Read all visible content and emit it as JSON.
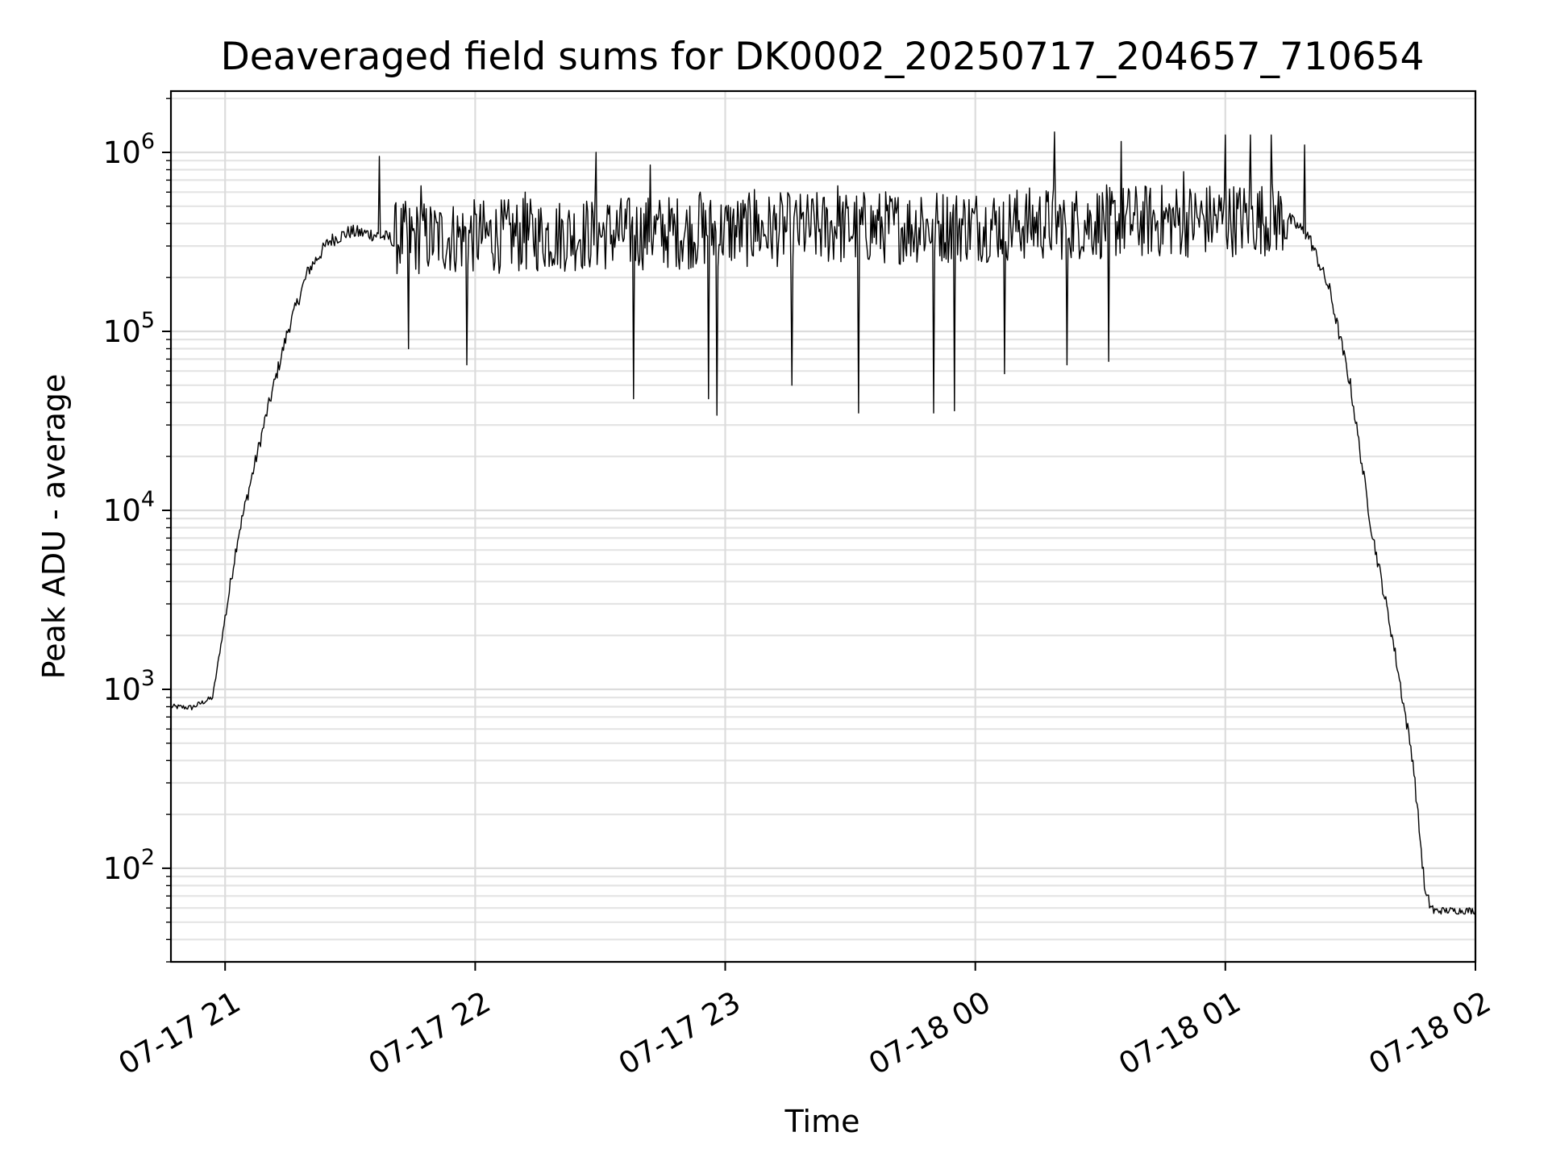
{
  "chart_data": {
    "type": "line",
    "title": "Deaveraged field sums for DK0002_20250717_204657_710654",
    "xlabel": "Time",
    "ylabel": "Peak ADU - average",
    "yscale": "log",
    "ylim": [
      30,
      2200000
    ],
    "xlim": [
      "2025-07-17 20:47",
      "2025-07-18 02:00"
    ],
    "grid": true,
    "x_tick_labels": [
      "07-17 21",
      "07-17 22",
      "07-17 23",
      "07-18 00",
      "07-18 01",
      "07-18 02"
    ],
    "x_ticks": [
      "2025-07-17 21:00",
      "2025-07-17 22:00",
      "2025-07-17 23:00",
      "2025-07-18 00:00",
      "2025-07-18 01:00",
      "2025-07-18 02:00"
    ],
    "y_ticks": [
      {
        "base": "10",
        "exp": "2",
        "value": 100
      },
      {
        "base": "10",
        "exp": "3",
        "value": 1000
      },
      {
        "base": "10",
        "exp": "4",
        "value": 10000
      },
      {
        "base": "10",
        "exp": "5",
        "value": 100000
      },
      {
        "base": "10",
        "exp": "6",
        "value": 1000000
      }
    ],
    "series": [
      {
        "color": "#000000",
        "points": [
          {
            "x": "2025-07-17 20:47",
            "y": 800
          },
          {
            "x": "2025-07-17 20:52",
            "y": 790
          },
          {
            "x": "2025-07-17 20:57",
            "y": 900
          },
          {
            "x": "2025-07-17 21:00",
            "y": 2500
          },
          {
            "x": "2025-07-17 21:03",
            "y": 7000
          },
          {
            "x": "2025-07-17 21:06",
            "y": 14000
          },
          {
            "x": "2025-07-17 21:10",
            "y": 35000
          },
          {
            "x": "2025-07-17 21:15",
            "y": 100000
          },
          {
            "x": "2025-07-17 21:20",
            "y": 220000
          },
          {
            "x": "2025-07-17 21:25",
            "y": 320000
          },
          {
            "x": "2025-07-17 21:30",
            "y": 360000
          },
          {
            "x": "2025-07-17 21:35",
            "y": 350000
          },
          {
            "x": "2025-07-17 21:40",
            "y": 330000
          },
          {
            "x": "2025-07-18 01:15",
            "y": 430000
          },
          {
            "x": "2025-07-18 01:20",
            "y": 340000
          },
          {
            "x": "2025-07-18 01:25",
            "y": 170000
          },
          {
            "x": "2025-07-18 01:30",
            "y": 50000
          },
          {
            "x": "2025-07-18 01:35",
            "y": 8000
          },
          {
            "x": "2025-07-18 01:40",
            "y": 2000
          },
          {
            "x": "2025-07-18 01:45",
            "y": 400
          },
          {
            "x": "2025-07-18 01:48",
            "y": 70
          },
          {
            "x": "2025-07-18 01:50",
            "y": 58
          },
          {
            "x": "2025-07-18 02:00",
            "y": 58
          }
        ],
        "spikes_up": [
          {
            "x": "2025-07-17 21:37",
            "y": 950000
          },
          {
            "x": "2025-07-17 21:47",
            "y": 650000
          },
          {
            "x": "2025-07-17 21:58",
            "y": 620000
          },
          {
            "x": "2025-07-17 22:12",
            "y": 600000
          },
          {
            "x": "2025-07-17 22:29",
            "y": 1000000
          },
          {
            "x": "2025-07-17 22:42",
            "y": 850000
          },
          {
            "x": "2025-07-17 22:54",
            "y": 600000
          },
          {
            "x": "2025-07-17 23:07",
            "y": 620000
          },
          {
            "x": "2025-07-17 23:27",
            "y": 650000
          },
          {
            "x": "2025-07-17 23:47",
            "y": 560000
          },
          {
            "x": "2025-07-18 00:19",
            "y": 1300000
          },
          {
            "x": "2025-07-18 00:35",
            "y": 1150000
          },
          {
            "x": "2025-07-18 00:50",
            "y": 780000
          },
          {
            "x": "2025-07-18 01:00",
            "y": 1250000
          },
          {
            "x": "2025-07-18 01:06",
            "y": 1250000
          },
          {
            "x": "2025-07-18 01:11",
            "y": 1250000
          },
          {
            "x": "2025-07-18 01:19",
            "y": 1100000
          }
        ],
        "spikes_down": [
          {
            "x": "2025-07-17 21:44",
            "y": 80000
          },
          {
            "x": "2025-07-17 21:58",
            "y": 65000
          },
          {
            "x": "2025-07-17 22:38",
            "y": 42000
          },
          {
            "x": "2025-07-17 22:56",
            "y": 42000
          },
          {
            "x": "2025-07-17 22:58",
            "y": 34000
          },
          {
            "x": "2025-07-17 23:16",
            "y": 50000
          },
          {
            "x": "2025-07-17 23:32",
            "y": 35000
          },
          {
            "x": "2025-07-17 23:50",
            "y": 35000
          },
          {
            "x": "2025-07-17 23:55",
            "y": 36000
          },
          {
            "x": "2025-07-18 00:07",
            "y": 58000
          },
          {
            "x": "2025-07-18 00:22",
            "y": 65000
          },
          {
            "x": "2025-07-18 00:32",
            "y": 68000
          }
        ]
      }
    ]
  }
}
